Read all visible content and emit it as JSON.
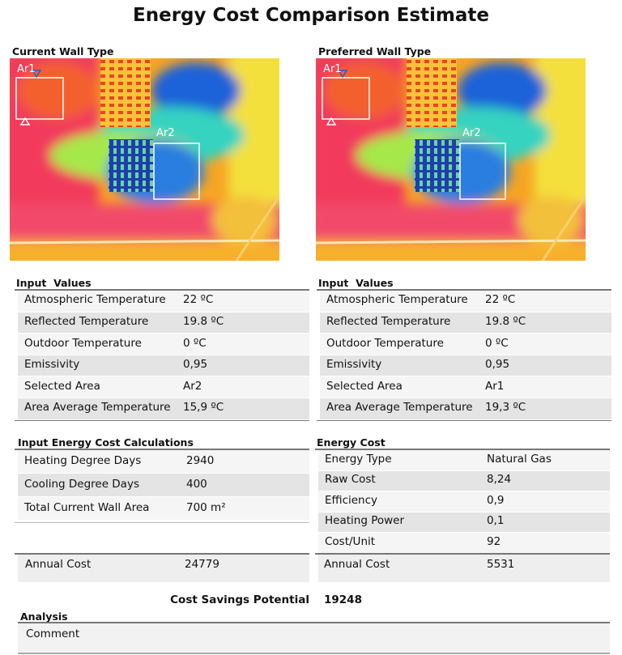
{
  "title": "Energy Cost Comparison Estimate",
  "panels": [
    {
      "heading": "Current Wall Type",
      "areas": [
        "Ar1",
        "Ar2"
      ],
      "input_heading": "Input  Values",
      "inputs": [
        [
          "Atmospheric Temperature",
          "22 ºC"
        ],
        [
          "Reflected Temperature",
          "19.8 ºC"
        ],
        [
          "Outdoor Temperature",
          "0 ºC"
        ],
        [
          "Emissivity",
          "0,95"
        ],
        [
          "Selected Area",
          "Ar2"
        ],
        [
          "Area Average Temperature",
          "15,9 ºC"
        ]
      ]
    },
    {
      "heading": "Preferred Wall Type",
      "areas": [
        "Ar1",
        "Ar2"
      ],
      "input_heading": "Input  Values",
      "inputs": [
        [
          "Atmospheric Temperature",
          "22 ºC"
        ],
        [
          "Reflected Temperature",
          "19.8 ºC"
        ],
        [
          "Outdoor Temperature",
          "0 ºC"
        ],
        [
          "Emissivity",
          "0,95"
        ],
        [
          "Selected Area",
          "Ar1"
        ],
        [
          "Area Average Temperature",
          "19,3 ºC"
        ]
      ]
    }
  ],
  "cost_calc": {
    "heading": "Input Energy Cost Calculations",
    "rows": [
      [
        "Heating Degree Days",
        "2940"
      ],
      [
        "Cooling Degree Days",
        "400"
      ],
      [
        "Total Current Wall Area",
        "700 m²"
      ]
    ],
    "annual": [
      "Annual Cost",
      "24779"
    ]
  },
  "energy_cost": {
    "heading": "Energy Cost",
    "rows": [
      [
        "Energy Type",
        "Natural Gas"
      ],
      [
        "Raw Cost",
        "8,24"
      ],
      [
        "Efficiency",
        "0,9"
      ],
      [
        "Heating Power",
        "0,1"
      ],
      [
        "Cost/Unit",
        "92"
      ]
    ],
    "annual": [
      "Annual Cost",
      "5531"
    ]
  },
  "savings": {
    "label": "Cost Savings Potential",
    "value": "19248"
  },
  "analysis": {
    "heading": "Analysis",
    "comment": "Comment"
  }
}
